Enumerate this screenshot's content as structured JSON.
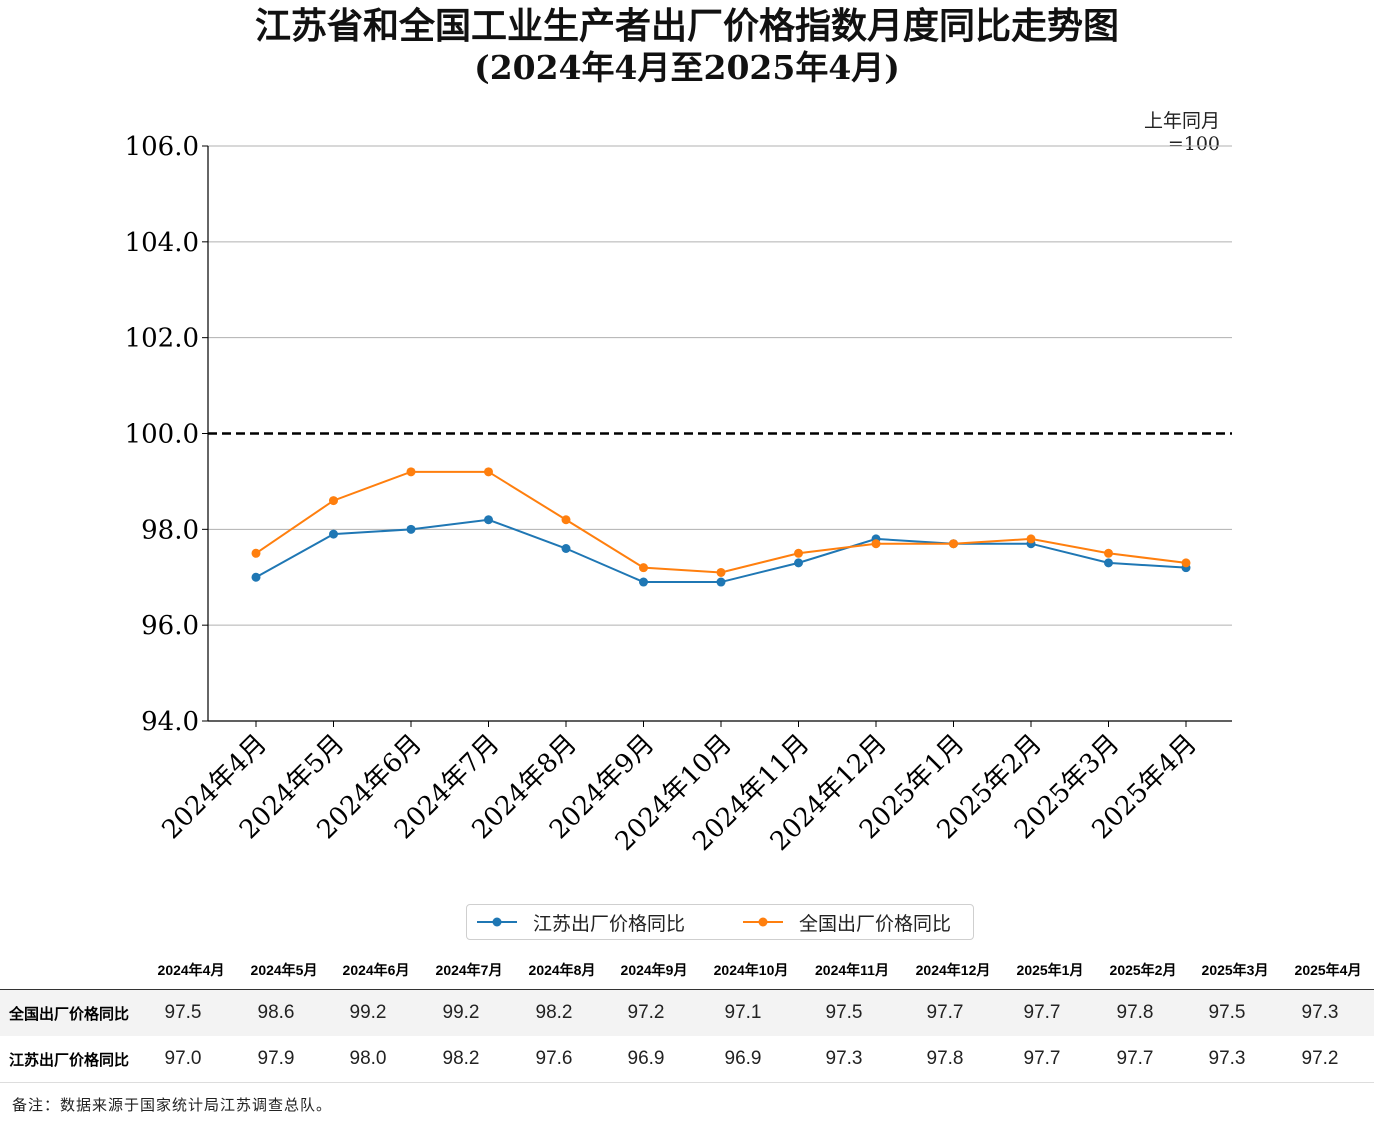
{
  "title_line1": "江苏省和全国工业生产者出厂价格指数月度同比走势图",
  "title_line2": "(2024年4月至2025年4月)",
  "unit_note": "上年同月=100",
  "chart_data": {
    "type": "line",
    "categories": [
      "2024年4月",
      "2024年5月",
      "2024年6月",
      "2024年7月",
      "2024年8月",
      "2024年9月",
      "2024年10月",
      "2024年11月",
      "2024年12月",
      "2025年1月",
      "2025年2月",
      "2025年3月",
      "2025年4月"
    ],
    "series": [
      {
        "name": "江苏出厂价格同比",
        "color": "#1f77b4",
        "values": [
          97.0,
          97.9,
          98.0,
          98.2,
          97.6,
          96.9,
          96.9,
          97.3,
          97.8,
          97.7,
          97.7,
          97.3,
          97.2
        ]
      },
      {
        "name": "全国出厂价格同比",
        "color": "#ff7f0e",
        "values": [
          97.5,
          98.6,
          99.2,
          99.2,
          98.2,
          97.2,
          97.1,
          97.5,
          97.7,
          97.7,
          97.8,
          97.5,
          97.3
        ]
      }
    ],
    "yticks": [
      "94.0",
      "96.0",
      "98.0",
      "100.0",
      "102.0",
      "104.0",
      "106.0"
    ],
    "ylim": [
      94,
      106
    ],
    "reference_line": 100,
    "grid": "horizontal",
    "legend_position": "bottom-center"
  },
  "legend": {
    "jiangsu": "江苏出厂价格同比",
    "national": "全国出厂价格同比"
  },
  "table": {
    "headers": [
      "2024年4月",
      "2024年5月",
      "2024年6月",
      "2024年7月",
      "2024年8月",
      "2024年9月",
      "2024年10月",
      "2024年11月",
      "2024年12月",
      "2025年1月",
      "2025年2月",
      "2025年3月",
      "2025年4月"
    ],
    "rows": [
      {
        "label": "全国出厂价格同比",
        "values": [
          "97.5",
          "98.6",
          "99.2",
          "99.2",
          "98.2",
          "97.2",
          "97.1",
          "97.5",
          "97.7",
          "97.7",
          "97.8",
          "97.5",
          "97.3"
        ]
      },
      {
        "label": "江苏出厂价格同比",
        "values": [
          "97.0",
          "97.9",
          "98.0",
          "98.2",
          "97.6",
          "96.9",
          "96.9",
          "97.3",
          "97.8",
          "97.7",
          "97.7",
          "97.3",
          "97.2"
        ]
      }
    ]
  },
  "footnote": "备注：数据来源于国家统计局江苏调查总队。"
}
